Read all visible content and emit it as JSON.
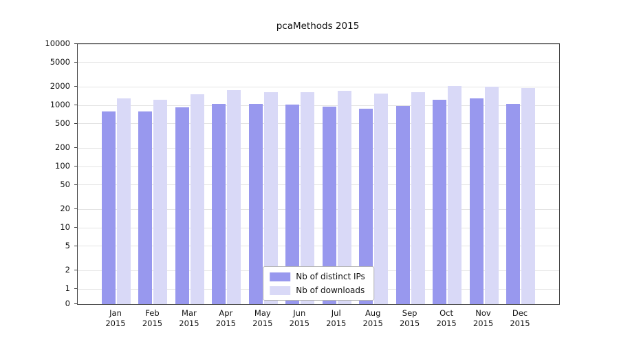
{
  "title": "pcaMethods 2015",
  "colors": {
    "ips_bar": "#9898ee",
    "downloads_bar": "#d9d9f7",
    "grid": "#e4e4e4",
    "frame": "#444444"
  },
  "chart_data": {
    "type": "bar",
    "scale": "log",
    "title": "pcaMethods 2015",
    "xlabel": "",
    "ylabel": "",
    "ylim": [
      0,
      10000
    ],
    "grid": "horizontal",
    "legend_position": "bottom-center",
    "yticks": [
      0,
      1,
      2,
      5,
      10,
      20,
      50,
      100,
      200,
      500,
      1000,
      2000,
      5000,
      10000
    ],
    "categories": [
      "Jan",
      "Feb",
      "Mar",
      "Apr",
      "May",
      "Jun",
      "Jul",
      "Aug",
      "Sep",
      "Oct",
      "Nov",
      "Dec"
    ],
    "year_label": "2015",
    "series": [
      {
        "name": "Nb of distinct IPs",
        "color": "#9898ee",
        "values": [
          800,
          790,
          930,
          1060,
          1050,
          1030,
          950,
          880,
          980,
          1220,
          1300,
          1060
        ]
      },
      {
        "name": "Nb of downloads",
        "color": "#d9d9f7",
        "values": [
          1300,
          1230,
          1530,
          1750,
          1640,
          1640,
          1700,
          1540,
          1640,
          2050,
          1990,
          1900
        ]
      }
    ]
  }
}
